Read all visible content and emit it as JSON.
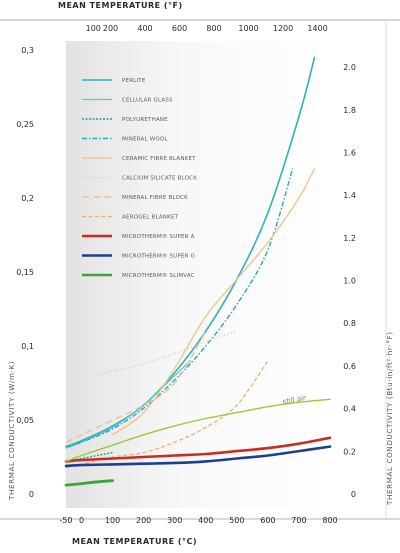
{
  "chart_data": {
    "type": "line",
    "xlabel_bottom": "MEAN TEMPERATURE (°C)",
    "xlabel_top": "MEAN TEMPERATURE (°F)",
    "ylabel_left": "THERMAL CONDUCTIVITY (W/m·K)",
    "ylabel_right": "THERMAL CONDUCTIVITY (Btu·in/ft²·hr·°F)",
    "xlim": [
      -50,
      800
    ],
    "ylim": [
      0,
      0.3
    ],
    "x_ticks": [
      -50,
      0,
      100,
      200,
      300,
      400,
      500,
      600,
      700,
      800
    ],
    "y_ticks": [
      0,
      0.05,
      0.1,
      0.15,
      0.2,
      0.25,
      0.3
    ],
    "y_tick_labels": [
      "0",
      "0,05",
      "0,1",
      "0,15",
      "0,2",
      "0,25",
      "0,3"
    ],
    "top_ticks": [
      100,
      200,
      400,
      600,
      800,
      1000,
      1200,
      1400
    ],
    "right_ticks": [
      "0",
      "0.2",
      "0.4",
      "0.6",
      "0.8",
      "1.0",
      "1.2",
      "1.4",
      "1.6",
      "1.8",
      "2.0"
    ],
    "annotation": "still air",
    "legend_placement": "upper-left",
    "grid": false,
    "series": [
      {
        "name": "PERLITE",
        "color": "#2bb3bd",
        "dash": "",
        "width": 1.6,
        "x": [
          -50,
          0,
          100,
          200,
          300,
          400,
          500,
          600,
          700,
          750
        ],
        "y": [
          0.032,
          0.036,
          0.046,
          0.06,
          0.082,
          0.11,
          0.145,
          0.19,
          0.255,
          0.295
        ]
      },
      {
        "name": "CELLULAR GLASS",
        "color": "#55c8c8",
        "dash": "",
        "width": 1.2,
        "x": [
          -50,
          0,
          100,
          200,
          300,
          350
        ],
        "y": [
          0.031,
          0.035,
          0.045,
          0.06,
          0.08,
          0.09
        ]
      },
      {
        "name": "POLYURETHANE",
        "color": "#1aa3a3",
        "dash": "2,1.5",
        "width": 1.4,
        "x": [
          -50,
          0,
          50,
          100
        ],
        "y": [
          0.022,
          0.024,
          0.026,
          0.028
        ]
      },
      {
        "name": "MINERAL WOOL",
        "color": "#2aa8b8",
        "dash": "5,2,1.5,2",
        "width": 1.4,
        "x": [
          -50,
          0,
          100,
          200,
          300,
          400,
          500,
          600,
          680
        ],
        "y": [
          0.032,
          0.035,
          0.044,
          0.058,
          0.077,
          0.1,
          0.128,
          0.165,
          0.22
        ]
      },
      {
        "name": "CERAMIC FIBRE BLANKET",
        "color": "#f2c58c",
        "dash": "",
        "width": 1.4,
        "x": [
          100,
          200,
          300,
          400,
          500,
          600,
          700,
          750
        ],
        "y": [
          0.04,
          0.055,
          0.085,
          0.12,
          0.145,
          0.17,
          0.2,
          0.22
        ]
      },
      {
        "name": "CALCIUM SILICATE BLOCK",
        "color": "#f3caa0",
        "dash": "1.5,2",
        "width": 1.3,
        "x": [
          50,
          100,
          200,
          300,
          400,
          500
        ],
        "y": [
          0.08,
          0.083,
          0.088,
          0.095,
          0.103,
          0.11
        ]
      },
      {
        "name": "MINERAL FIBRE BLOCK",
        "color": "#f2c090",
        "dash": "7,4",
        "width": 1.4,
        "x": [
          -50,
          0,
          100,
          200,
          300,
          400
        ],
        "y": [
          0.035,
          0.04,
          0.05,
          0.06,
          0.075,
          0.11
        ]
      },
      {
        "name": "AEROGEL BLANKET",
        "color": "#f0b070",
        "dash": "4,2.5",
        "width": 1.3,
        "x": [
          -50,
          0,
          100,
          200,
          300,
          400,
          500,
          600
        ],
        "y": [
          0.018,
          0.02,
          0.025,
          0.028,
          0.035,
          0.045,
          0.06,
          0.09
        ]
      },
      {
        "name": "MICROTHERM® SUPER A",
        "color": "#cc2a22",
        "dash": "",
        "width": 2.6,
        "x": [
          -50,
          0,
          100,
          200,
          300,
          400,
          500,
          600,
          700,
          800
        ],
        "y": [
          0.022,
          0.023,
          0.024,
          0.025,
          0.026,
          0.027,
          0.029,
          0.031,
          0.034,
          0.038
        ]
      },
      {
        "name": "MICROTHERM® SUPER G",
        "color": "#1c3f8e",
        "dash": "",
        "width": 2.6,
        "x": [
          -50,
          0,
          100,
          200,
          300,
          400,
          500,
          600,
          700,
          800
        ],
        "y": [
          0.019,
          0.0195,
          0.02,
          0.0205,
          0.021,
          0.022,
          0.024,
          0.026,
          0.029,
          0.032
        ]
      },
      {
        "name": "MICROTHERM® SLIMVAC",
        "color": "#3ea33a",
        "dash": "",
        "width": 2.8,
        "x": [
          -50,
          0,
          40,
          100
        ],
        "y": [
          0.006,
          0.007,
          0.008,
          0.009
        ]
      },
      {
        "name": "still air",
        "color": "#9ec83a",
        "dash": "",
        "width": 1.4,
        "legend": false,
        "x": [
          -50,
          0,
          100,
          200,
          300,
          400,
          500,
          600,
          700,
          800
        ],
        "y": [
          0.022,
          0.026,
          0.033,
          0.04,
          0.046,
          0.051,
          0.055,
          0.059,
          0.062,
          0.064
        ]
      }
    ]
  }
}
